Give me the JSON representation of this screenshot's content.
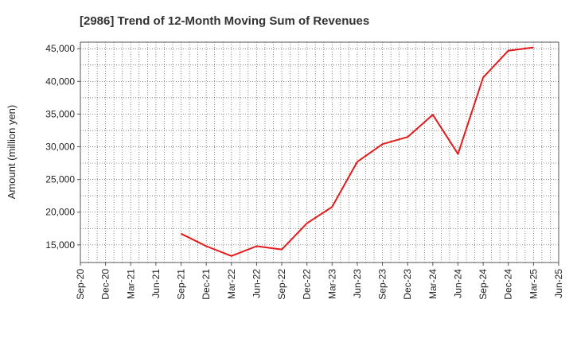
{
  "chart_data": {
    "type": "line",
    "title": "[2986]  Trend of 12-Month Moving Sum of Revenues",
    "xlabel": "",
    "ylabel": "Amount (million yen)",
    "x_ticks": [
      "Sep-20",
      "Dec-20",
      "Mar-21",
      "Jun-21",
      "Sep-21",
      "Dec-21",
      "Mar-22",
      "Jun-22",
      "Sep-22",
      "Dec-22",
      "Mar-23",
      "Jun-23",
      "Sep-23",
      "Dec-23",
      "Mar-24",
      "Jun-24",
      "Sep-24",
      "Dec-24",
      "Mar-25",
      "Jun-25"
    ],
    "y_ticks": [
      15000,
      20000,
      25000,
      30000,
      35000,
      40000,
      45000
    ],
    "y_tick_labels": [
      "15,000",
      "20,000",
      "25,000",
      "30,000",
      "35,000",
      "40,000",
      "45,000"
    ],
    "ylim": [
      12300,
      46000
    ],
    "grid": true,
    "series": [
      {
        "color": "#e41a1c",
        "x": [
          "Sep-21",
          "Dec-21",
          "Mar-22",
          "Jun-22",
          "Sep-22",
          "Dec-22",
          "Mar-23",
          "Jun-23",
          "Sep-23",
          "Dec-23",
          "Mar-24",
          "Jun-24",
          "Sep-24",
          "Dec-24",
          "Mar-25"
        ],
        "values": [
          16700,
          14800,
          13300,
          14800,
          14300,
          18300,
          20800,
          27700,
          30400,
          31500,
          34900,
          28900,
          40600,
          44700,
          45200
        ]
      }
    ]
  }
}
